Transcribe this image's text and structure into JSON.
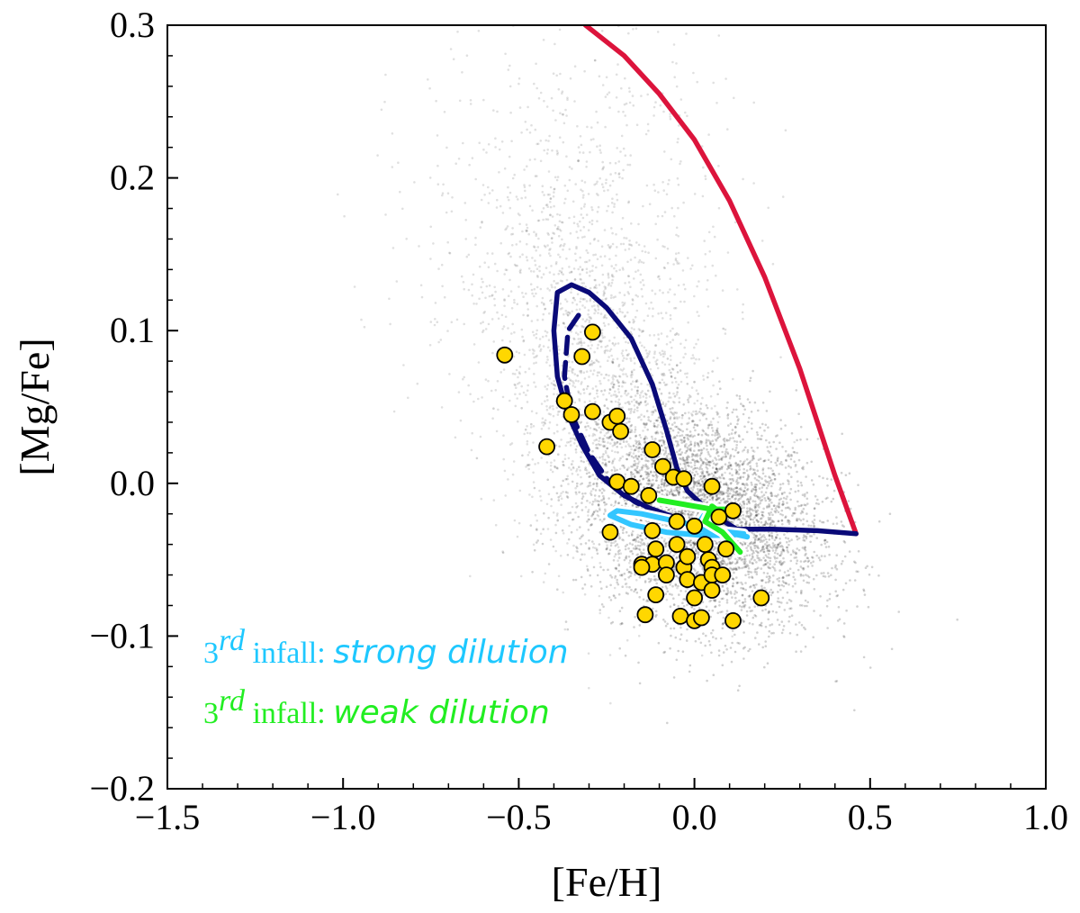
{
  "chart_data": {
    "type": "scatter",
    "xlabel": "[Fe/H]",
    "ylabel": "[Mg/Fe]",
    "xlim": [
      -1.5,
      1.0
    ],
    "ylim": [
      -0.2,
      0.3
    ],
    "x_ticks": [
      {
        "value": -1.5,
        "label": "−1.5"
      },
      {
        "value": -1.0,
        "label": "−1.0"
      },
      {
        "value": -0.5,
        "label": "−0.5"
      },
      {
        "value": 0.0,
        "label": "0.0"
      },
      {
        "value": 0.5,
        "label": "0.5"
      },
      {
        "value": 1.0,
        "label": "1.0"
      }
    ],
    "y_ticks": [
      {
        "value": -0.2,
        "label": "−0.2"
      },
      {
        "value": -0.1,
        "label": "−0.1"
      },
      {
        "value": 0.0,
        "label": "0.0"
      },
      {
        "value": 0.1,
        "label": "0.1"
      },
      {
        "value": 0.2,
        "label": "0.2"
      },
      {
        "value": 0.3,
        "label": "0.3"
      }
    ],
    "grid": false,
    "background_stars": {
      "color": "#000000",
      "description_points": "dense grey cloud of field stars centred near [Fe/H]=0.0, [Mg/Fe]=-0.02 with extended tail to lower metallicity and higher [Mg/Fe]"
    },
    "series": [
      {
        "style": "solid",
        "color": "#dc143c",
        "points": [
          [
            -0.31,
            0.3
          ],
          [
            -0.2,
            0.28
          ],
          [
            -0.1,
            0.255
          ],
          [
            0.0,
            0.225
          ],
          [
            0.1,
            0.185
          ],
          [
            0.2,
            0.135
          ],
          [
            0.3,
            0.075
          ],
          [
            0.4,
            0.005
          ],
          [
            0.46,
            -0.033
          ]
        ]
      },
      {
        "style": "solid",
        "color": "#0a0a78",
        "points": [
          [
            0.46,
            -0.033
          ],
          [
            0.35,
            -0.031
          ],
          [
            0.22,
            -0.03
          ],
          [
            0.12,
            -0.03
          ],
          [
            0.05,
            -0.02
          ],
          [
            -0.02,
            -0.005
          ],
          [
            -0.05,
            0.01
          ],
          [
            -0.08,
            0.035
          ],
          [
            -0.12,
            0.065
          ],
          [
            -0.18,
            0.095
          ],
          [
            -0.25,
            0.115
          ],
          [
            -0.3,
            0.125
          ],
          [
            -0.35,
            0.13
          ],
          [
            -0.39,
            0.125
          ],
          [
            -0.4,
            0.1
          ],
          [
            -0.39,
            0.07
          ],
          [
            -0.36,
            0.045
          ],
          [
            -0.32,
            0.025
          ],
          [
            -0.27,
            0.005
          ],
          [
            -0.2,
            -0.008
          ],
          [
            -0.13,
            -0.016
          ],
          [
            -0.06,
            -0.022
          ],
          [
            0.05,
            -0.03
          ],
          [
            0.15,
            -0.035
          ]
        ]
      },
      {
        "style": "dashed",
        "color": "#0a0a78",
        "points": [
          [
            -0.33,
            0.11
          ],
          [
            -0.36,
            0.1
          ],
          [
            -0.37,
            0.07
          ],
          [
            -0.35,
            0.045
          ],
          [
            -0.3,
            0.02
          ],
          [
            -0.24,
            0.0
          ],
          [
            -0.17,
            -0.012
          ],
          [
            -0.1,
            -0.02
          ]
        ]
      },
      {
        "style": "solid",
        "color": "#33c6ff",
        "outline": "#ffffff",
        "points": [
          [
            0.15,
            -0.035
          ],
          [
            0.05,
            -0.03
          ],
          [
            -0.05,
            -0.025
          ],
          [
            -0.15,
            -0.02
          ],
          [
            -0.22,
            -0.018
          ],
          [
            -0.24,
            -0.021
          ],
          [
            -0.18,
            -0.027
          ],
          [
            -0.08,
            -0.032
          ],
          [
            0.02,
            -0.034
          ],
          [
            0.1,
            -0.034
          ],
          [
            0.14,
            -0.033
          ],
          [
            0.06,
            -0.031
          ],
          [
            0.0,
            -0.03
          ],
          [
            0.03,
            -0.02
          ]
        ]
      },
      {
        "style": "solid",
        "color": "#22ee22",
        "outline": "#ffffff",
        "points": [
          [
            -0.1,
            -0.011
          ],
          [
            -0.05,
            -0.013
          ],
          [
            0.0,
            -0.015
          ],
          [
            0.05,
            -0.017
          ],
          [
            0.1,
            -0.017
          ],
          [
            0.11,
            -0.016
          ],
          [
            0.08,
            -0.02
          ],
          [
            0.05,
            -0.015
          ],
          [
            0.03,
            -0.025
          ],
          [
            0.08,
            -0.032
          ],
          [
            0.13,
            -0.045
          ]
        ]
      }
    ],
    "points": {
      "fill": "#ffd700",
      "stroke": "#000000",
      "values": [
        [
          -0.54,
          0.084
        ],
        [
          -0.29,
          0.099
        ],
        [
          -0.32,
          0.083
        ],
        [
          -0.37,
          0.054
        ],
        [
          -0.35,
          0.045
        ],
        [
          -0.42,
          0.024
        ],
        [
          -0.29,
          0.047
        ],
        [
          -0.24,
          0.04
        ],
        [
          -0.22,
          0.044
        ],
        [
          -0.21,
          0.034
        ],
        [
          -0.12,
          0.022
        ],
        [
          -0.09,
          0.011
        ],
        [
          -0.06,
          0.004
        ],
        [
          -0.03,
          0.003
        ],
        [
          -0.22,
          0.001
        ],
        [
          -0.18,
          -0.002
        ],
        [
          -0.13,
          -0.008
        ],
        [
          0.05,
          -0.002
        ],
        [
          -0.24,
          -0.032
        ],
        [
          -0.12,
          -0.031
        ],
        [
          -0.05,
          -0.025
        ],
        [
          0.0,
          -0.028
        ],
        [
          0.07,
          -0.022
        ],
        [
          0.11,
          -0.018
        ],
        [
          -0.11,
          -0.043
        ],
        [
          -0.15,
          -0.053
        ],
        [
          -0.12,
          -0.053
        ],
        [
          -0.08,
          -0.052
        ],
        [
          -0.03,
          -0.055
        ],
        [
          -0.02,
          -0.048
        ],
        [
          0.04,
          -0.05
        ],
        [
          0.05,
          -0.055
        ],
        [
          0.09,
          -0.043
        ],
        [
          -0.02,
          -0.063
        ],
        [
          0.02,
          -0.065
        ],
        [
          0.05,
          -0.06
        ],
        [
          -0.11,
          -0.073
        ],
        [
          0.0,
          -0.075
        ],
        [
          0.05,
          -0.07
        ],
        [
          0.19,
          -0.075
        ],
        [
          -0.14,
          -0.086
        ],
        [
          -0.04,
          -0.087
        ],
        [
          0.0,
          -0.09
        ],
        [
          0.02,
          -0.088
        ],
        [
          0.11,
          -0.09
        ],
        [
          -0.15,
          -0.055
        ],
        [
          -0.08,
          -0.06
        ],
        [
          0.08,
          -0.06
        ],
        [
          -0.05,
          -0.04
        ],
        [
          0.03,
          -0.04
        ]
      ]
    },
    "annotations": [
      {
        "prefix": "3",
        "sup": "rd",
        "mid": " infall: ",
        "emph": "strong dilution",
        "color": "#1ec8ff"
      },
      {
        "prefix": "3",
        "sup": "rd",
        "mid": " infall: ",
        "emph": "weak dilution",
        "color": "#22ee22"
      }
    ]
  }
}
